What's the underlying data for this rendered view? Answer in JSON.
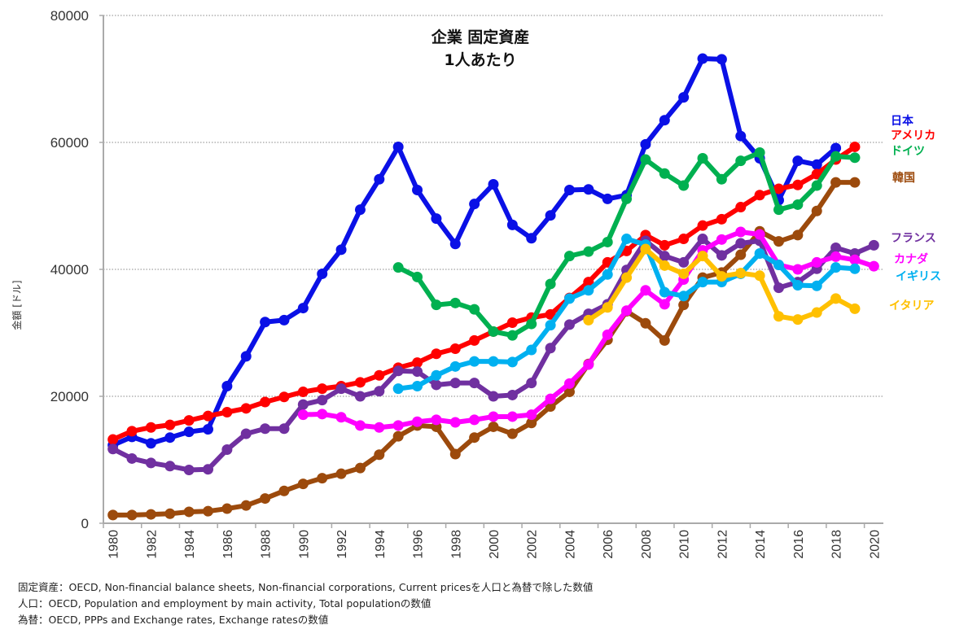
{
  "chart_data": {
    "type": "line",
    "title": [
      "企業 固定資産",
      "1人あたり"
    ],
    "ylabel": "金額 [ドル]",
    "xlabel": "",
    "ylim": [
      0,
      80000
    ],
    "yticks": [
      0,
      20000,
      40000,
      60000,
      80000
    ],
    "ytick_labels": [
      "0",
      "20000",
      "40000",
      "60000",
      "80000"
    ],
    "xlim": [
      1980,
      2020
    ],
    "xtick_labels": [
      "1980",
      "1982",
      "1984",
      "1986",
      "1988",
      "1990",
      "1992",
      "1994",
      "1996",
      "1998",
      "2000",
      "2002",
      "2004",
      "2006",
      "2008",
      "2010",
      "2012",
      "2014",
      "2016",
      "2018",
      "2020"
    ],
    "grid": true,
    "legend_placement": "right (labels at line ends)",
    "x": [
      1980,
      1981,
      1982,
      1983,
      1984,
      1985,
      1986,
      1987,
      1988,
      1989,
      1990,
      1991,
      1992,
      1993,
      1994,
      1995,
      1996,
      1997,
      1998,
      1999,
      2000,
      2001,
      2002,
      2003,
      2004,
      2005,
      2006,
      2007,
      2008,
      2009,
      2010,
      2011,
      2012,
      2013,
      2014,
      2015,
      2016,
      2017,
      2018,
      2019,
      2020
    ],
    "series": [
      {
        "name": "日本",
        "color": "#0a10e6",
        "start": 1980,
        "values": [
          12300,
          13600,
          12600,
          13500,
          14400,
          14800,
          21600,
          26300,
          31700,
          32000,
          33900,
          39300,
          43100,
          49400,
          54200,
          59300,
          52500,
          48000,
          44000,
          50300,
          53400,
          47000,
          44900,
          48500,
          52500,
          52600,
          51100,
          51700,
          59700,
          63500,
          67100,
          73200,
          73100,
          61000,
          57500,
          50900,
          57100,
          56500,
          59100
        ]
      },
      {
        "name": "アメリカ",
        "color": "#ff0000",
        "start": 1980,
        "values": [
          13200,
          14500,
          15100,
          15500,
          16200,
          16900,
          17500,
          18100,
          19100,
          19900,
          20700,
          21200,
          21600,
          22200,
          23300,
          24500,
          25300,
          26700,
          27500,
          28800,
          30200,
          31600,
          32400,
          32900,
          35500,
          38000,
          41100,
          42900,
          45400,
          43800,
          44800,
          46900,
          47900,
          49800,
          51700,
          52700,
          53300,
          55000,
          57300,
          59300
        ]
      },
      {
        "name": "ドイツ",
        "color": "#00b050",
        "start": 1995,
        "values": [
          40300,
          38800,
          34400,
          34700,
          33700,
          30200,
          29600,
          31400,
          37700,
          42100,
          42800,
          44300,
          51100,
          57300,
          55100,
          53200,
          57500,
          54200,
          57100,
          58400,
          49400,
          50200,
          53200,
          57800,
          57600
        ]
      },
      {
        "name": "韓国",
        "color": "#9c4a0c",
        "start": 1980,
        "values": [
          1300,
          1300,
          1400,
          1500,
          1800,
          1900,
          2300,
          2800,
          3900,
          5100,
          6200,
          7100,
          7800,
          8700,
          10800,
          13700,
          15400,
          15200,
          10900,
          13500,
          15200,
          14100,
          15800,
          18400,
          20700,
          25100,
          28900,
          33400,
          31500,
          28800,
          34400,
          38700,
          39500,
          42300,
          46000,
          44400,
          45400,
          49200,
          53700,
          53700
        ]
      },
      {
        "name": "フランス",
        "color": "#7030a0",
        "start": 1980,
        "values": [
          11700,
          10200,
          9500,
          9000,
          8400,
          8500,
          11600,
          14100,
          14900,
          14900,
          18700,
          19400,
          21200,
          20000,
          20800,
          24000,
          23900,
          21800,
          22100,
          22100,
          20000,
          20200,
          22100,
          27600,
          31300,
          33000,
          34500,
          39900,
          44500,
          42100,
          41100,
          44800,
          42200,
          44100,
          44500,
          37100,
          38000,
          40100,
          43400,
          42500,
          43800
        ]
      },
      {
        "name": "カナダ",
        "color": "#ff00ff",
        "start": 1990,
        "values": [
          17100,
          17200,
          16700,
          15400,
          15100,
          15400,
          16000,
          16300,
          15900,
          16300,
          16800,
          16800,
          17100,
          19600,
          22000,
          25000,
          29700,
          33500,
          36700,
          34500,
          38400,
          43000,
          44700,
          45900,
          45500,
          40700,
          40000,
          41100,
          42000,
          41500,
          40500
        ]
      },
      {
        "name": "イギリス",
        "color": "#00b0f0",
        "start": 1995,
        "values": [
          21200,
          21600,
          23300,
          24700,
          25500,
          25500,
          25400,
          27300,
          31200,
          35400,
          36700,
          39200,
          44800,
          43900,
          36400,
          35800,
          38000,
          38000,
          39300,
          42500,
          40700,
          37500,
          37400,
          40300,
          40100
        ]
      },
      {
        "name": "イタリア",
        "color": "#ffc000",
        "start": 2005,
        "values": [
          32000,
          34000,
          38700,
          43200,
          40600,
          39300,
          42100,
          38900,
          39400,
          39000,
          32600,
          32100,
          33200,
          35400,
          33800
        ]
      }
    ],
    "legend": [
      {
        "label": "日本",
        "color": "#0a10e6"
      },
      {
        "label": "アメリカ",
        "color": "#ff0000"
      },
      {
        "label": "ドイツ",
        "color": "#00b050"
      },
      {
        "label": "韓国",
        "color": "#9c4a0c"
      },
      {
        "label": "フランス",
        "color": "#7030a0"
      },
      {
        "label": "カナダ",
        "color": "#ff00ff"
      },
      {
        "label": "イギリス",
        "color": "#00b0f0"
      },
      {
        "label": "イタリア",
        "color": "#ffc000"
      }
    ]
  },
  "notes": [
    "固定資産：OECD, Non-financial balance sheets, Non-financial corporations, Current pricesを人口と為替で除した数値",
    "人口：OECD, Population and employment by main activity, Total populationの数値",
    "為替：OECD, PPPs and Exchange rates, Exchange ratesの数値"
  ]
}
